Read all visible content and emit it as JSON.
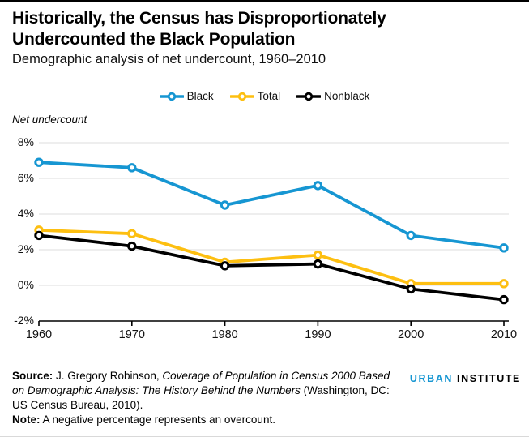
{
  "header": {
    "title": "Historically, the Census has Disproportionately Undercounted the Black Population",
    "subtitle": "Demographic analysis of net undercount, 1960–2010"
  },
  "legend": [
    {
      "label": "Black",
      "color": "#1696d2"
    },
    {
      "label": "Total",
      "color": "#fdbf11"
    },
    {
      "label": "Nonblack",
      "color": "#000000"
    }
  ],
  "chart_data": {
    "type": "line",
    "title": "Historically, the Census has Disproportionately Undercounted the Black Population",
    "subtitle": "Demographic analysis of net undercount, 1960–2010",
    "ylabel": "Net undercount",
    "xlabel": "",
    "x": [
      1960,
      1970,
      1980,
      1990,
      2000,
      2010
    ],
    "series": [
      {
        "name": "Black",
        "color": "#1696d2",
        "values": [
          6.9,
          6.6,
          4.5,
          5.6,
          2.8,
          2.1
        ]
      },
      {
        "name": "Total",
        "color": "#fdbf11",
        "values": [
          3.1,
          2.9,
          1.3,
          1.7,
          0.1,
          0.1
        ]
      },
      {
        "name": "Nonblack",
        "color": "#000000",
        "values": [
          2.8,
          2.2,
          1.1,
          1.2,
          -0.2,
          -0.8
        ]
      }
    ],
    "ylim": [
      -2,
      8
    ],
    "yticks": [
      8,
      6,
      4,
      2,
      0,
      -2
    ],
    "ytick_labels": [
      "8%",
      "6%",
      "4%",
      "2%",
      "0%",
      "-2%"
    ],
    "grid": true,
    "gridline_color": "#dcdcdc",
    "axis_color": "#000000",
    "legend_position": "top center"
  },
  "footer": {
    "source_label": "Source:",
    "source_text_1": " J. Gregory Robinson, ",
    "source_italic": "Coverage of Population in Census 2000 Based on Demographic Analysis: The History Behind the Numbers",
    "source_text_2": " (Washington, DC: US Census Bureau, 2010).",
    "note_label": "Note:",
    "note_text": " A negative percentage represents an overcount."
  },
  "logo": {
    "word1": "URBAN",
    "word2": "INSTITUTE"
  }
}
